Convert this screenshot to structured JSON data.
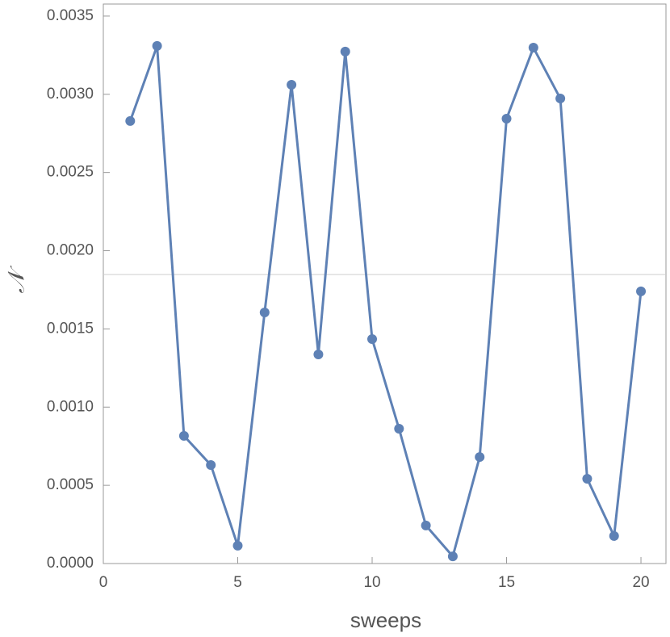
{
  "chart_data": {
    "type": "line",
    "x_label": "sweeps",
    "y_label": "𝒩",
    "x": [
      1,
      2,
      3,
      4,
      5,
      6,
      7,
      8,
      9,
      10,
      11,
      12,
      13,
      14,
      15,
      16,
      17,
      18,
      19,
      20
    ],
    "series": [
      {
        "color": "#5e81b5",
        "values": [
          0.002829,
          0.003309,
          0.000816,
          0.00063,
          0.000114,
          0.001605,
          0.003061,
          0.001337,
          0.003273,
          0.001435,
          0.000862,
          0.000243,
          4.6e-05,
          0.000681,
          0.002844,
          0.003298,
          0.002973,
          0.000542,
          0.000176,
          0.00174
        ]
      }
    ],
    "reference_line": 0.001848,
    "xlim": [
      0,
      20.93
    ],
    "ylim": [
      0,
      0.003577
    ],
    "xticks": [
      0,
      5,
      10,
      15,
      20
    ],
    "yticks": [
      {
        "value": 0,
        "label": "0.0000"
      },
      {
        "value": 0.0005,
        "label": "0.0005"
      },
      {
        "value": 0.001,
        "label": "0.0010"
      },
      {
        "value": 0.0015,
        "label": "0.0015"
      },
      {
        "value": 0.002,
        "label": "0.0020"
      },
      {
        "value": 0.0025,
        "label": "0.0025"
      },
      {
        "value": 0.003,
        "label": "0.0030"
      },
      {
        "value": 0.0035,
        "label": "0.0035"
      }
    ]
  }
}
